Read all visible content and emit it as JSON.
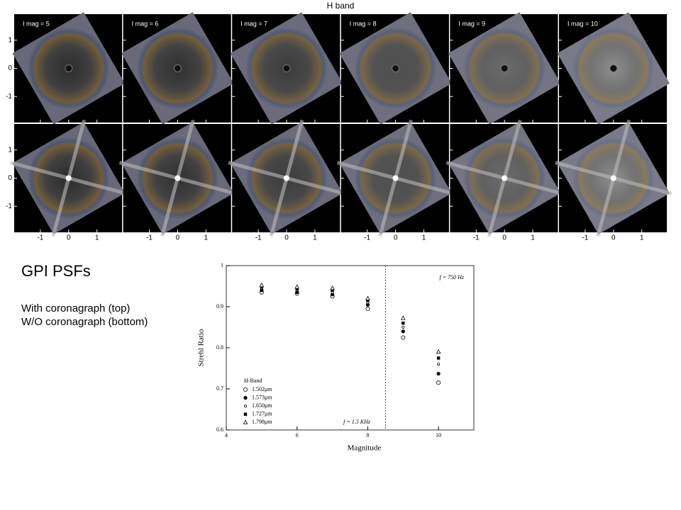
{
  "slide": {
    "title": "GPI PSFs",
    "lines": [
      "With coronagraph (top)",
      "W/O coronagraph (bottom)"
    ]
  },
  "psf_grid": {
    "title": "H band",
    "panel_labels": [
      "I mag = 5",
      "I mag = 6",
      "I mag = 7",
      "I mag = 8",
      "I mag = 9",
      "I mag = 10"
    ],
    "xlim": [
      -1.925,
      1.925
    ],
    "ylim": [
      -1.925,
      1.925
    ],
    "xticks": [
      -1,
      0,
      1
    ],
    "yticks": [
      -1,
      0,
      1
    ]
  },
  "chart_data": {
    "type": "scatter",
    "x_label": "Magnitude",
    "y_label": "Strehl Ratio",
    "legend_title": "H-Band",
    "annotations": [
      "f = 750 Hz",
      "f = 1.5 KHz"
    ],
    "divider_x": 8.5,
    "x": [
      5,
      6,
      7,
      8,
      9,
      10
    ],
    "series": [
      {
        "name": "1.502μm",
        "marker": "circle-open",
        "color": "#000",
        "values": [
          0.935,
          0.932,
          0.925,
          0.895,
          0.825,
          0.715
        ]
      },
      {
        "name": "1.573μm",
        "marker": "circle-filled",
        "color": "#000",
        "values": [
          0.94,
          0.935,
          0.93,
          0.905,
          0.84,
          0.737
        ]
      },
      {
        "name": "1.650μm",
        "marker": "small-circle-open",
        "color": "#000",
        "values": [
          0.945,
          0.94,
          0.935,
          0.91,
          0.85,
          0.76
        ]
      },
      {
        "name": "1.727μm",
        "marker": "square-filled",
        "color": "#000",
        "values": [
          0.948,
          0.943,
          0.94,
          0.915,
          0.86,
          0.775
        ]
      },
      {
        "name": "1.798μm",
        "marker": "triangle-open",
        "color": "#000",
        "values": [
          0.952,
          0.948,
          0.945,
          0.92,
          0.872,
          0.79
        ]
      }
    ],
    "xlim": [
      4,
      11
    ],
    "ylim": [
      0.6,
      1
    ],
    "xticks": [
      4,
      6,
      8,
      10
    ],
    "yticks": [
      0.6,
      0.7,
      0.8,
      0.9,
      1
    ]
  }
}
